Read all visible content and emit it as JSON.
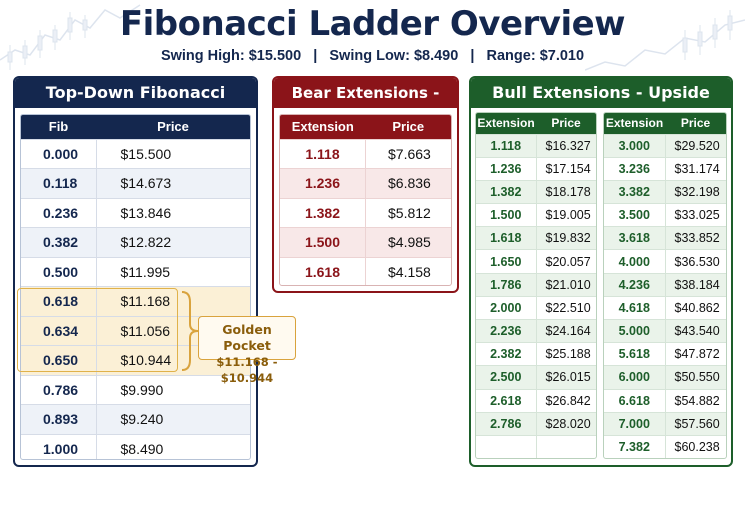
{
  "header": {
    "title": "Fibonacci Ladder Overview",
    "subtitle": "Swing High: $15.500   |   Swing Low: $8.490   |   Range: $7.010"
  },
  "ladder": {
    "title": "Top-Down Fibonacci Ladder",
    "columns": [
      "Fib",
      "Price"
    ],
    "rows": [
      {
        "fib": "0.000",
        "price": "$15.500"
      },
      {
        "fib": "0.118",
        "price": "$14.673"
      },
      {
        "fib": "0.236",
        "price": "$13.846"
      },
      {
        "fib": "0.382",
        "price": "$12.822"
      },
      {
        "fib": "0.500",
        "price": "$11.995"
      },
      {
        "fib": "0.618",
        "price": "$11.168"
      },
      {
        "fib": "0.634",
        "price": "$11.056"
      },
      {
        "fib": "0.650",
        "price": "$10.944"
      },
      {
        "fib": "0.786",
        "price": "$9.990"
      },
      {
        "fib": "0.893",
        "price": "$9.240"
      },
      {
        "fib": "1.000",
        "price": "$8.490"
      }
    ],
    "golden_pocket": {
      "label": "Golden Pocket",
      "range": "$11.168 - $10.944",
      "color": "#e0b24a"
    }
  },
  "bear": {
    "title": "Bear Extensions - Downside",
    "columns": [
      "Extension",
      "Price"
    ],
    "rows": [
      {
        "ext": "1.118",
        "price": "$7.663"
      },
      {
        "ext": "1.236",
        "price": "$6.836"
      },
      {
        "ext": "1.382",
        "price": "$5.812"
      },
      {
        "ext": "1.500",
        "price": "$4.985"
      },
      {
        "ext": "1.618",
        "price": "$4.158"
      }
    ],
    "color": "#8b1419"
  },
  "bull": {
    "title": "Bull Extensions - Upside",
    "columns": [
      "Extension",
      "Price"
    ],
    "left": [
      {
        "ext": "1.118",
        "price": "$16.327"
      },
      {
        "ext": "1.236",
        "price": "$17.154"
      },
      {
        "ext": "1.382",
        "price": "$18.178"
      },
      {
        "ext": "1.500",
        "price": "$19.005"
      },
      {
        "ext": "1.618",
        "price": "$19.832"
      },
      {
        "ext": "1.650",
        "price": "$20.057"
      },
      {
        "ext": "1.786",
        "price": "$21.010"
      },
      {
        "ext": "2.000",
        "price": "$22.510"
      },
      {
        "ext": "2.236",
        "price": "$24.164"
      },
      {
        "ext": "2.382",
        "price": "$25.188"
      },
      {
        "ext": "2.500",
        "price": "$26.015"
      },
      {
        "ext": "2.618",
        "price": "$26.842"
      },
      {
        "ext": "2.786",
        "price": "$28.020"
      },
      {
        "ext": "",
        "price": ""
      }
    ],
    "right": [
      {
        "ext": "3.000",
        "price": "$29.520"
      },
      {
        "ext": "3.236",
        "price": "$31.174"
      },
      {
        "ext": "3.382",
        "price": "$32.198"
      },
      {
        "ext": "3.500",
        "price": "$33.025"
      },
      {
        "ext": "3.618",
        "price": "$33.852"
      },
      {
        "ext": "4.000",
        "price": "$36.530"
      },
      {
        "ext": "4.236",
        "price": "$38.184"
      },
      {
        "ext": "4.618",
        "price": "$40.862"
      },
      {
        "ext": "5.000",
        "price": "$43.540"
      },
      {
        "ext": "5.618",
        "price": "$47.872"
      },
      {
        "ext": "6.000",
        "price": "$50.550"
      },
      {
        "ext": "6.618",
        "price": "$54.882"
      },
      {
        "ext": "7.000",
        "price": "$57.560"
      },
      {
        "ext": "7.382",
        "price": "$60.238"
      }
    ],
    "color": "#1d5e2a"
  }
}
